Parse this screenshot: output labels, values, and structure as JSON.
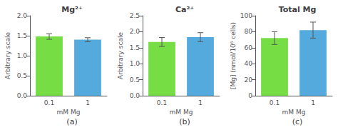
{
  "chart_data": [
    {
      "type": "bar",
      "title": "Mg²⁺",
      "ylabel": "Arbitrary scale",
      "xlabel": "mM Mg",
      "annotation": "(a)",
      "categories": [
        "0.1",
        "1"
      ],
      "values": [
        1.48,
        1.4
      ],
      "errors": [
        0.07,
        0.05
      ],
      "colors": [
        "#77dd44",
        "#55aadd"
      ],
      "ylim": [
        0,
        2.0
      ],
      "yticks": [
        {
          "value": 0,
          "label": "0.0"
        },
        0.5,
        {
          "value": 1.0,
          "label": "1.0"
        },
        1.5,
        {
          "value": 2.0,
          "label": "2.0"
        }
      ],
      "grid": false
    },
    {
      "type": "bar",
      "title": "Ca²⁺",
      "ylabel": "Arbitrary scale",
      "xlabel": "mM Mg",
      "annotation": "(b)",
      "categories": [
        "0.1",
        "1"
      ],
      "values": [
        1.68,
        1.83
      ],
      "errors": [
        0.14,
        0.14
      ],
      "colors": [
        "#77dd44",
        "#55aadd"
      ],
      "ylim": [
        0,
        2.5
      ],
      "yticks": [
        {
          "value": 0,
          "label": "0.0"
        },
        0.5,
        {
          "value": 1.0,
          "label": "1.0"
        },
        1.5,
        {
          "value": 2.0,
          "label": "2.0"
        },
        2.5
      ],
      "grid": false
    },
    {
      "type": "bar",
      "title": "Total Mg",
      "ylabel": "[Mg] (nmol/10⁶ cells)",
      "xlabel": "mM Mg",
      "annotation": "(c)",
      "categories": [
        "0.1",
        "1"
      ],
      "values": [
        72,
        82
      ],
      "errors": [
        8,
        10
      ],
      "colors": [
        "#77dd44",
        "#55aadd"
      ],
      "ylim": [
        0,
        100
      ],
      "yticks": [
        0,
        20,
        40,
        60,
        80,
        100
      ],
      "grid": false
    }
  ]
}
